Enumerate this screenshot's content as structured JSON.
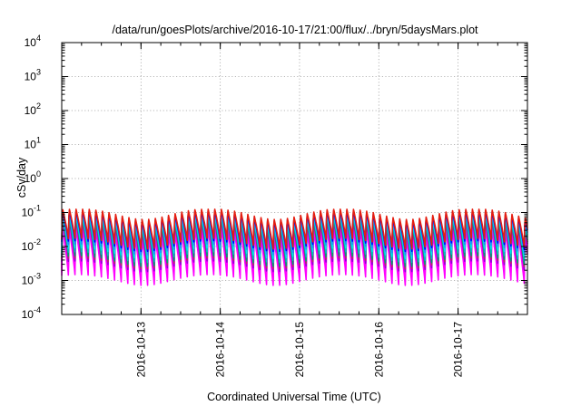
{
  "chart_data": {
    "type": "line",
    "title": "/data/run/goesPlots/archive/2016-10-17/21:00/flux/../bryn/5daysMars.plot",
    "xlabel": "Coordinated Universal Time (UTC)",
    "ylabel": "cSv/day",
    "yscale": "log",
    "ylim": [
      0.0001,
      10000
    ],
    "yticks": [
      {
        "value": 0.0001,
        "base": "10",
        "exp": "-4"
      },
      {
        "value": 0.001,
        "base": "10",
        "exp": "-3"
      },
      {
        "value": 0.01,
        "base": "10",
        "exp": "-2"
      },
      {
        "value": 0.1,
        "base": "10",
        "exp": "-1"
      },
      {
        "value": 1,
        "base": "10",
        "exp": "0"
      },
      {
        "value": 10,
        "base": "10",
        "exp": "1"
      },
      {
        "value": 100,
        "base": "10",
        "exp": "2"
      },
      {
        "value": 1000,
        "base": "10",
        "exp": "3"
      },
      {
        "value": 10000,
        "base": "10",
        "exp": "4"
      }
    ],
    "xlim": [
      "2016-10-12T00:00",
      "2016-10-17T21:00"
    ],
    "xticks": [
      "2016-10-13",
      "2016-10-14",
      "2016-10-15",
      "2016-10-16",
      "2016-10-17"
    ],
    "grid": true,
    "cycle_period_hours": 2,
    "series": [
      {
        "color": "#ff00ff",
        "peak": 0.028,
        "trough": 0.0011
      },
      {
        "color": "#ff00ff",
        "peak": 0.032,
        "trough": 0.0014
      },
      {
        "color": "#ff00ff",
        "peak": 0.037,
        "trough": 0.0018
      },
      {
        "color": "#ff00ff",
        "peak": 0.042,
        "trough": 0.0022
      },
      {
        "color": "#9400d3",
        "peak": 0.05,
        "trough": 0.0028
      },
      {
        "color": "#b03060",
        "peak": 0.055,
        "trough": 0.0034
      },
      {
        "color": "#009e73",
        "peak": 0.06,
        "trough": 0.004
      },
      {
        "color": "#00bfbf",
        "peak": 0.068,
        "trough": 0.0052
      },
      {
        "color": "#00e5ee",
        "peak": 0.076,
        "trough": 0.0068
      },
      {
        "color": "#1e90ff",
        "peak": 0.085,
        "trough": 0.0088
      },
      {
        "color": "#0000ff",
        "peak": 0.095,
        "trough": 0.011
      },
      {
        "color": "#e51e10",
        "peak": 0.105,
        "trough": 0.013
      }
    ]
  }
}
